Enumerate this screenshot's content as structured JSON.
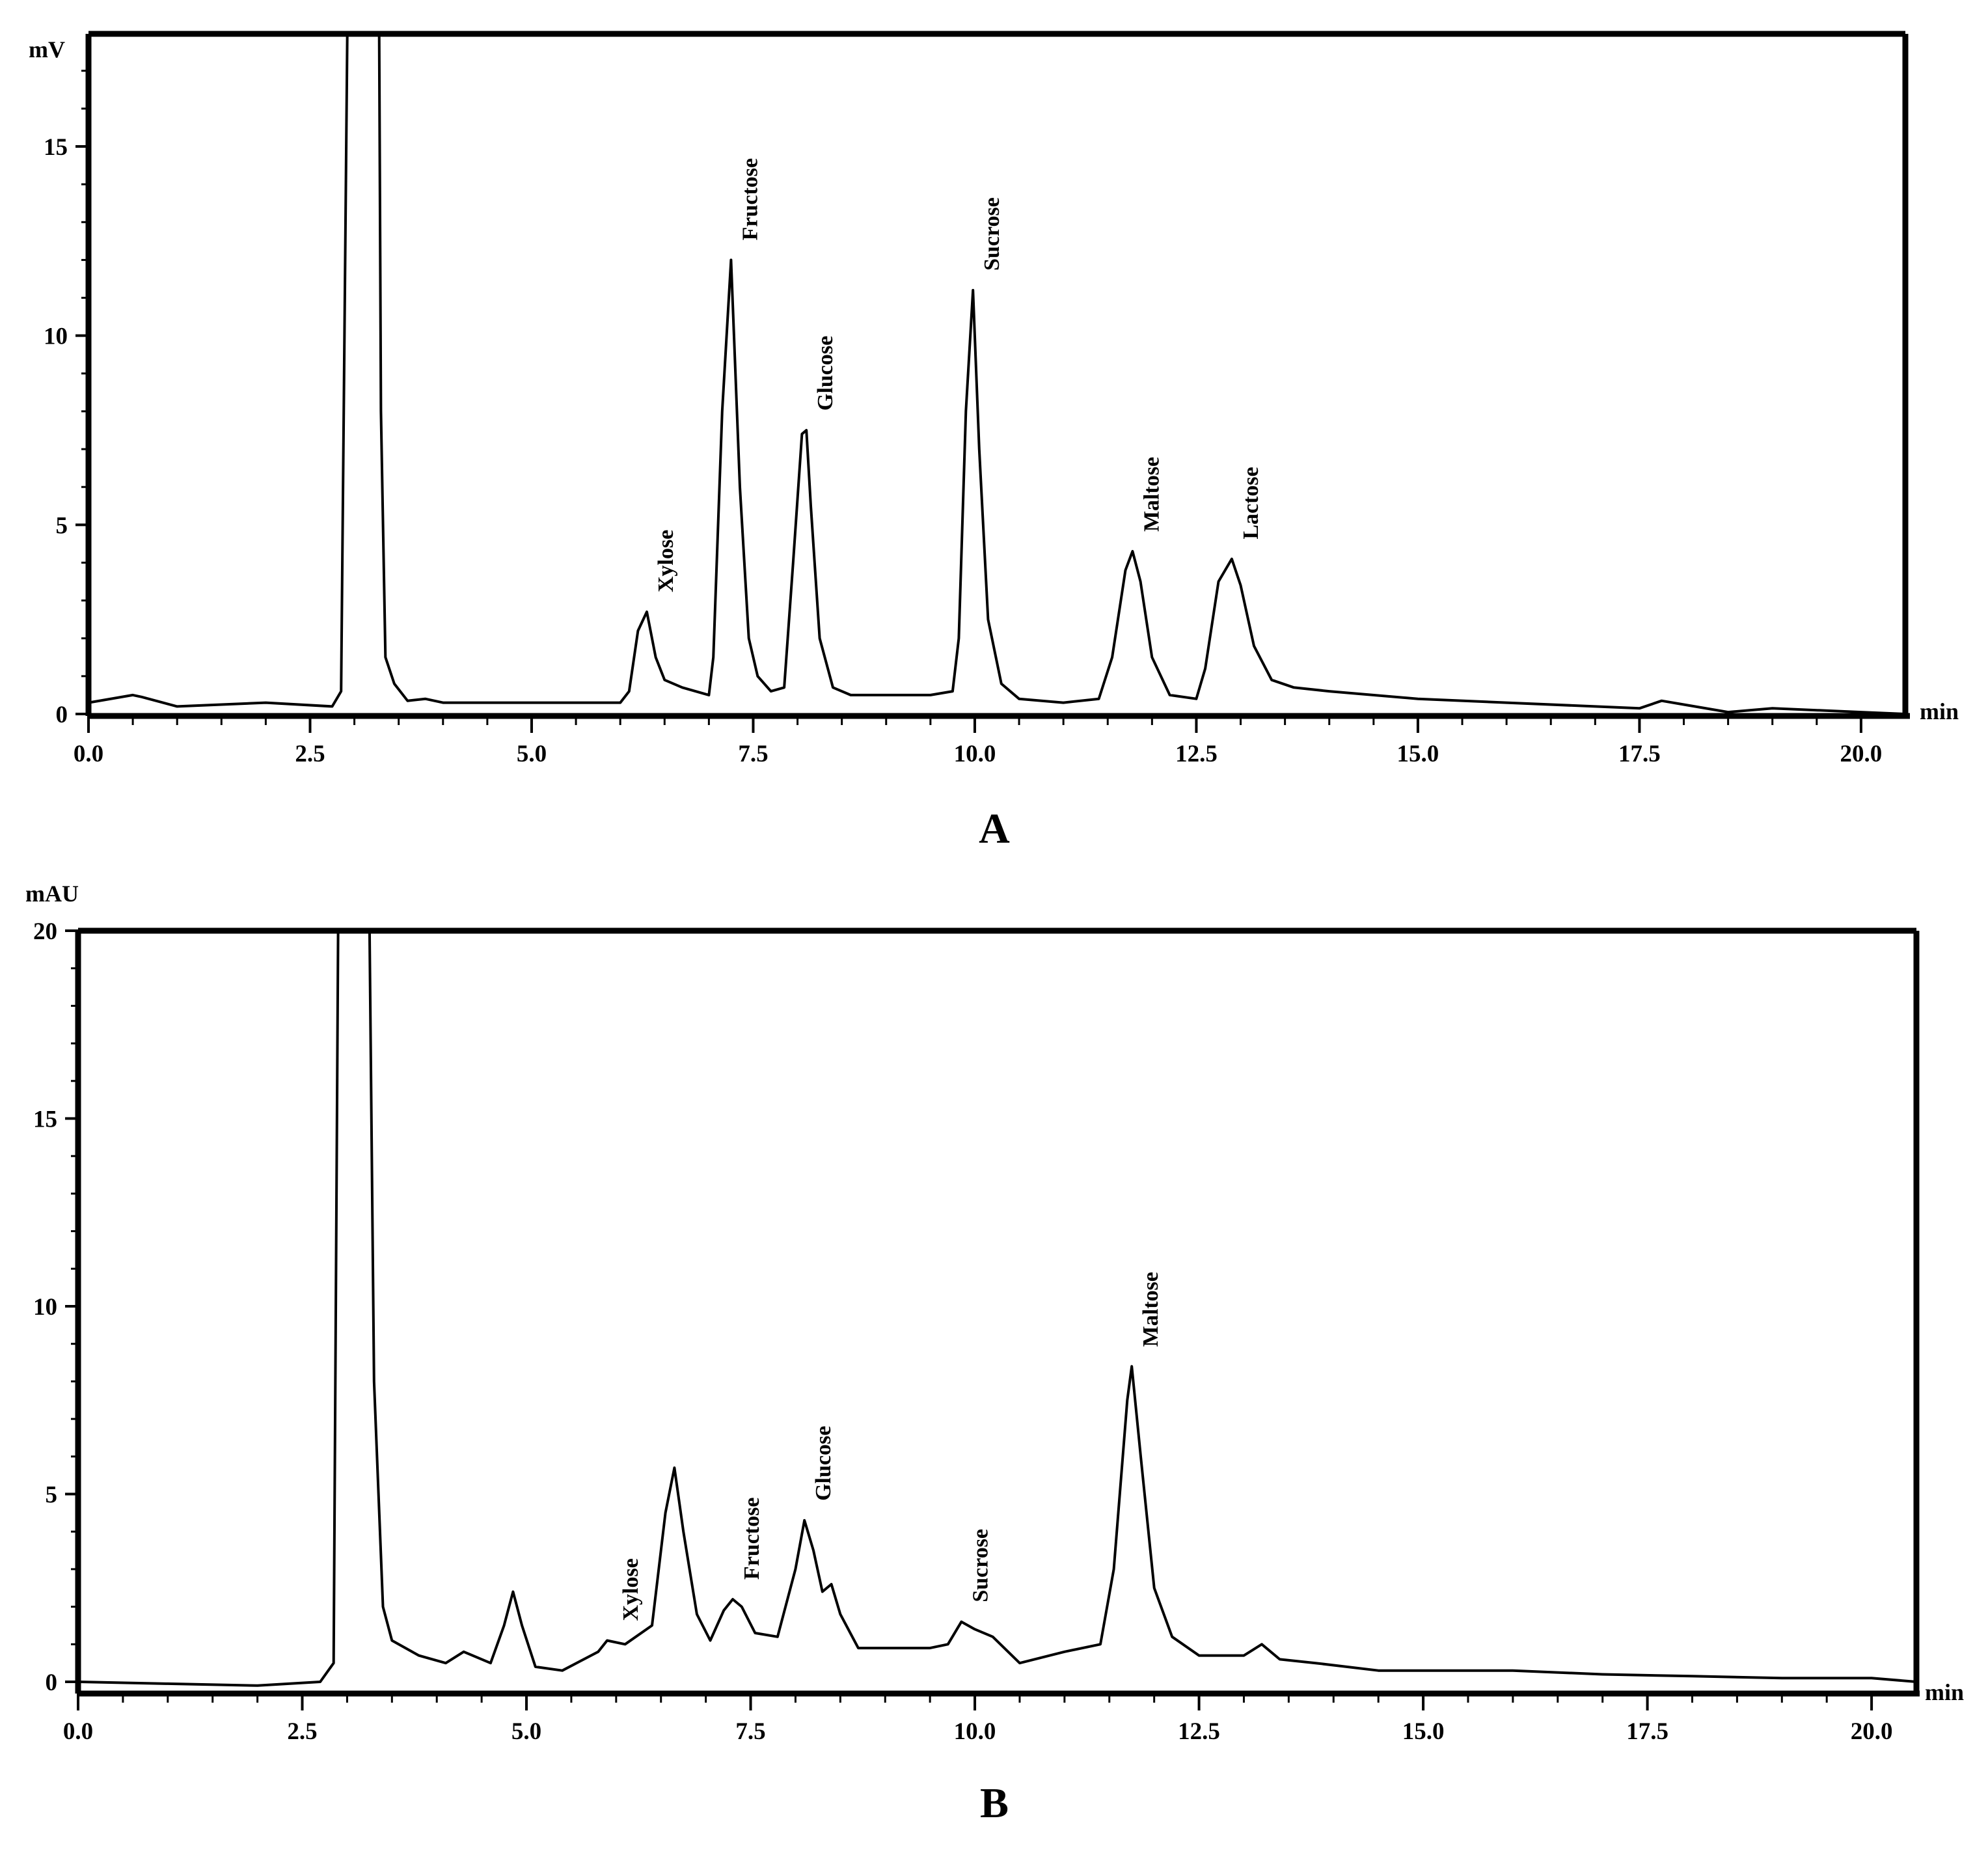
{
  "chart_data": [
    {
      "type": "line",
      "panel_label": "A",
      "ylabel_unit": "mV",
      "xlabel_unit": "min",
      "xlim": [
        0,
        20.5
      ],
      "ylim": [
        0,
        18.5
      ],
      "x_ticks": [
        0.0,
        2.5,
        5.0,
        7.5,
        10.0,
        12.5,
        15.0,
        17.5,
        20.0
      ],
      "x_tick_labels": [
        "0.0",
        "2.5",
        "5.0",
        "7.5",
        "10.0",
        "12.5",
        "15.0",
        "17.5",
        "20.0"
      ],
      "y_ticks": [
        0,
        5,
        10,
        15
      ],
      "y_tick_labels": [
        "0",
        "5",
        "10",
        "15"
      ],
      "grid": false,
      "annotations": [
        {
          "text": "Xylose",
          "x": 6.3,
          "y": 2.7
        },
        {
          "text": "Fructose",
          "x": 7.25,
          "y": 12.0
        },
        {
          "text": "Glucose",
          "x": 8.1,
          "y": 7.5
        },
        {
          "text": "Sucrose",
          "x": 9.98,
          "y": 11.2
        },
        {
          "text": "Maltose",
          "x": 11.78,
          "y": 4.3
        },
        {
          "text": "Lactose",
          "x": 12.9,
          "y": 4.1
        }
      ],
      "series": [
        {
          "x": [
            0,
            0.5,
            0.6,
            1.0,
            2.0,
            2.75,
            2.85,
            2.92,
            2.95,
            3.25,
            3.28,
            3.3,
            3.35,
            3.45,
            3.6,
            3.8,
            4.0,
            5.0,
            6.0,
            6.1,
            6.2,
            6.3,
            6.4,
            6.5,
            6.7,
            7.0,
            7.05,
            7.15,
            7.25,
            7.35,
            7.45,
            7.55,
            7.7,
            7.85,
            7.95,
            8.05,
            8.1,
            8.15,
            8.25,
            8.4,
            8.6,
            9.0,
            9.5,
            9.75,
            9.82,
            9.9,
            9.98,
            10.05,
            10.15,
            10.3,
            10.5,
            11.0,
            11.4,
            11.55,
            11.7,
            11.78,
            11.87,
            12.0,
            12.2,
            12.5,
            12.6,
            12.75,
            12.9,
            13.0,
            13.15,
            13.35,
            13.6,
            14.0,
            15.0,
            16.0,
            17.0,
            17.5,
            17.75,
            18.0,
            18.5,
            19.0,
            20.0,
            20.5
          ],
          "y": [
            0.3,
            0.5,
            0.45,
            0.2,
            0.3,
            0.2,
            0.6,
            18.5,
            18.5,
            18.5,
            18.5,
            8.0,
            1.5,
            0.8,
            0.35,
            0.4,
            0.3,
            0.3,
            0.3,
            0.6,
            2.2,
            2.7,
            1.5,
            0.9,
            0.7,
            0.5,
            1.5,
            8.0,
            12.0,
            6.0,
            2.0,
            1.0,
            0.6,
            0.7,
            4.0,
            7.4,
            7.5,
            5.5,
            2.0,
            0.7,
            0.5,
            0.5,
            0.5,
            0.6,
            2.0,
            8.0,
            11.2,
            7.0,
            2.5,
            0.8,
            0.4,
            0.3,
            0.4,
            1.5,
            3.8,
            4.3,
            3.5,
            1.5,
            0.5,
            0.4,
            1.2,
            3.5,
            4.1,
            3.4,
            1.8,
            0.9,
            0.7,
            0.6,
            0.4,
            0.3,
            0.2,
            0.15,
            0.35,
            0.25,
            0.05,
            0.15,
            0.05,
            0.0
          ]
        }
      ]
    },
    {
      "type": "line",
      "panel_label": "B",
      "ylabel_unit": "mAU",
      "xlabel_unit": "min",
      "xlim": [
        0,
        20.5
      ],
      "ylim": [
        -0.4,
        20
      ],
      "x_ticks": [
        0.0,
        2.5,
        5.0,
        7.5,
        10.0,
        12.5,
        15.0,
        17.5,
        20.0
      ],
      "x_tick_labels": [
        "0.0",
        "2.5",
        "5.0",
        "7.5",
        "10.0",
        "12.5",
        "15.0",
        "17.5",
        "20.0"
      ],
      "y_ticks": [
        0,
        5,
        10,
        15,
        20
      ],
      "y_tick_labels": [
        "0",
        "5",
        "10",
        "15",
        "20"
      ],
      "grid": false,
      "annotations": [
        {
          "text": "Xylose",
          "x": 5.95,
          "y": 1.1
        },
        {
          "text": "Fructose",
          "x": 7.3,
          "y": 2.2
        },
        {
          "text": "Glucose",
          "x": 8.1,
          "y": 4.3
        },
        {
          "text": "Sucrose",
          "x": 9.85,
          "y": 1.6
        },
        {
          "text": "Maltose",
          "x": 11.75,
          "y": 8.4
        }
      ],
      "series": [
        {
          "x": [
            0,
            1.0,
            2.0,
            2.7,
            2.85,
            2.9,
            3.25,
            3.3,
            3.4,
            3.5,
            3.8,
            4.1,
            4.3,
            4.6,
            4.75,
            4.85,
            4.95,
            5.1,
            5.4,
            5.8,
            5.9,
            6.1,
            6.4,
            6.55,
            6.65,
            6.75,
            6.9,
            7.05,
            7.2,
            7.3,
            7.4,
            7.55,
            7.8,
            8.0,
            8.1,
            8.2,
            8.3,
            8.4,
            8.5,
            8.7,
            9.0,
            9.5,
            9.7,
            9.85,
            10.0,
            10.2,
            10.5,
            11.0,
            11.4,
            11.55,
            11.7,
            11.75,
            11.85,
            12.0,
            12.2,
            12.5,
            13.0,
            13.2,
            13.4,
            13.8,
            14.5,
            16.0,
            17.0,
            18.0,
            19.0,
            20.0,
            20.5
          ],
          "y": [
            0.0,
            -0.05,
            -0.1,
            0.0,
            0.5,
            20.0,
            20.0,
            8.0,
            2.0,
            1.1,
            0.7,
            0.5,
            0.8,
            0.5,
            1.5,
            2.4,
            1.5,
            0.4,
            0.3,
            0.8,
            1.1,
            1.0,
            1.5,
            4.5,
            5.7,
            4.0,
            1.8,
            1.1,
            1.9,
            2.2,
            2.0,
            1.3,
            1.2,
            3.0,
            4.3,
            3.5,
            2.4,
            2.6,
            1.8,
            0.9,
            0.9,
            0.9,
            1.0,
            1.6,
            1.4,
            1.2,
            0.5,
            0.8,
            1.0,
            3.0,
            7.5,
            8.4,
            6.0,
            2.5,
            1.2,
            0.7,
            0.7,
            1.0,
            0.6,
            0.5,
            0.3,
            0.3,
            0.2,
            0.15,
            0.1,
            0.1,
            0.0
          ]
        }
      ]
    }
  ]
}
